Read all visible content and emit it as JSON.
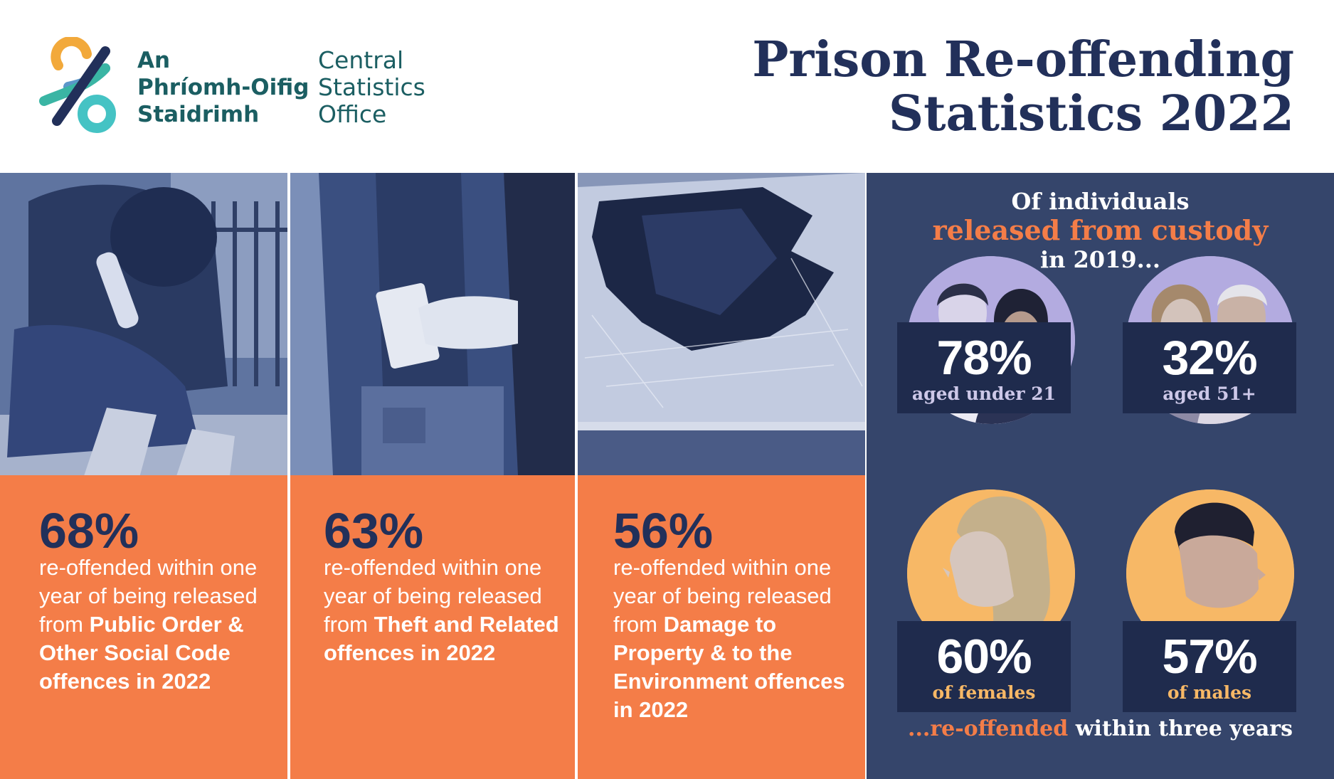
{
  "header": {
    "logo": {
      "irish_lines": [
        "An",
        "Phríomh-Oifig",
        "Staidrimh"
      ],
      "english_lines": [
        "Central",
        "Statistics",
        "Office"
      ]
    },
    "title_lines": [
      "Prison Re-offending",
      "Statistics 2022"
    ]
  },
  "panels": [
    {
      "image": "youth-with-bottle-photo",
      "percent": "68%",
      "text": "re-offended within one year of being released from ",
      "bold": "Public Order & Other Social Code offences in 2022"
    },
    {
      "image": "pickpocket-photo",
      "percent": "63%",
      "text": "re-offended within one year of being released from ",
      "bold": "Theft and Related offences in 2022"
    },
    {
      "image": "broken-car-window-photo",
      "percent": "56%",
      "text": "re-offended within one year of being released from ",
      "bold": "Damage to Property & to the Environment offences in 2022"
    }
  ],
  "right_panel": {
    "intro_line1": "Of individuals",
    "intro_line2": "released from custody",
    "intro_line3": "in 2019...",
    "stats": [
      {
        "image": "young-people-portrait",
        "percent": "78%",
        "label": "aged under 21"
      },
      {
        "image": "older-people-portrait",
        "percent": "32%",
        "label": "aged 51+"
      },
      {
        "image": "female-profile-portrait",
        "percent": "60%",
        "label": "of females"
      },
      {
        "image": "male-profile-portrait",
        "percent": "57%",
        "label": "of males"
      }
    ],
    "footer_accent": "...re-offended",
    "footer_rest": " within three years"
  },
  "colors": {
    "navy": "#22305a",
    "panel_navy": "#35456b",
    "box_navy": "#1f2b4d",
    "orange": "#f47d48",
    "lilac": "#b3abe0",
    "yellow": "#f7b866",
    "teal": "#1b5e62"
  }
}
